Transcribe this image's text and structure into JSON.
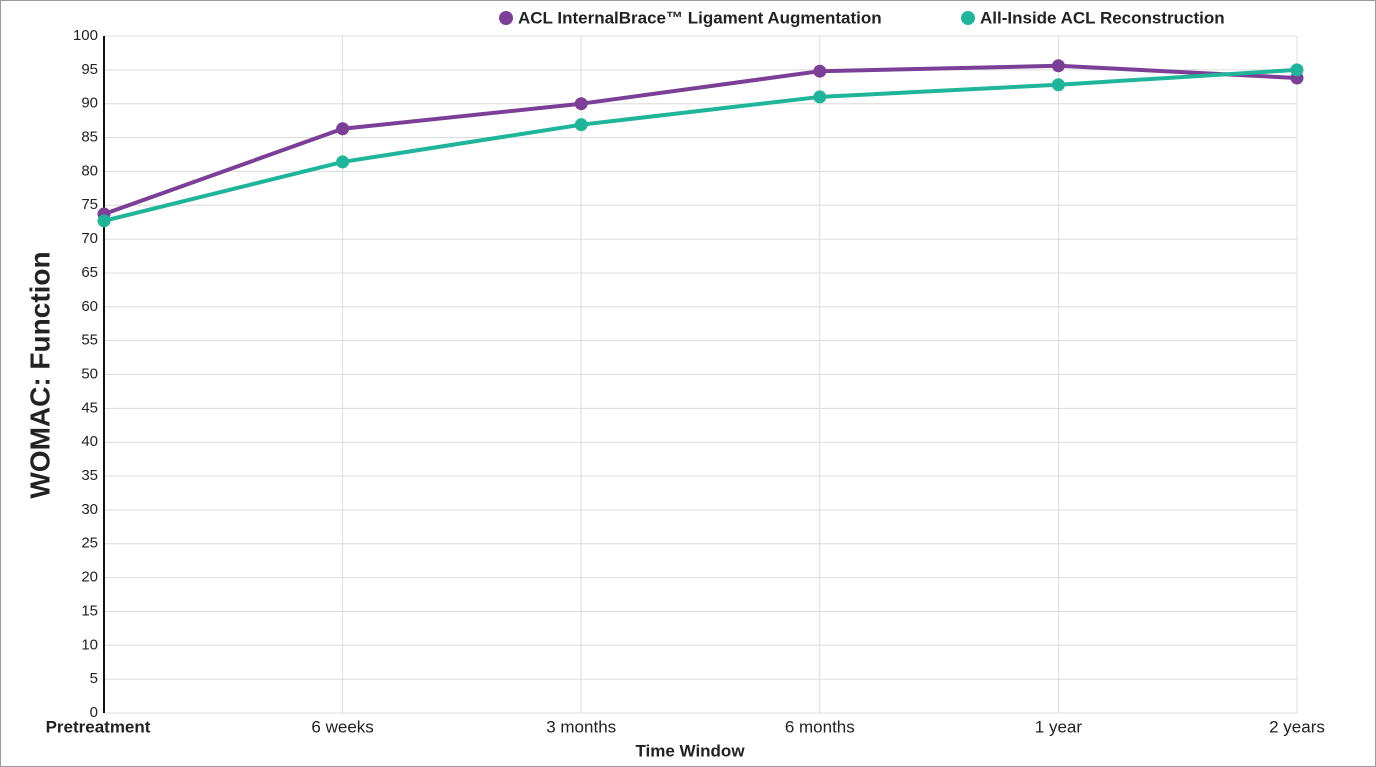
{
  "chart_data": {
    "type": "line",
    "categories": [
      "Pretreatment",
      "6 weeks",
      "3 months",
      "6 months",
      "1 year",
      "2 years"
    ],
    "series": [
      {
        "name": "ACL InternalBrace™ Ligament Augmentation",
        "color": "#7b3f98",
        "values": [
          73.7,
          86.3,
          90,
          94.8,
          95.6,
          93.8
        ]
      },
      {
        "name": "All-Inside ACL Reconstruction",
        "color": "#1fb59a",
        "values": [
          72.7,
          81.4,
          86.9,
          91,
          92.8,
          95
        ]
      }
    ],
    "ylim": [
      0,
      100
    ],
    "yticks": [
      0,
      5,
      10,
      15,
      20,
      25,
      30,
      35,
      40,
      45,
      50,
      55,
      60,
      65,
      70,
      75,
      80,
      85,
      90,
      95,
      100
    ],
    "xlabel": "Time Window",
    "ylabel": "WOMAC: Function",
    "grid": true,
    "legend": "top-right"
  }
}
